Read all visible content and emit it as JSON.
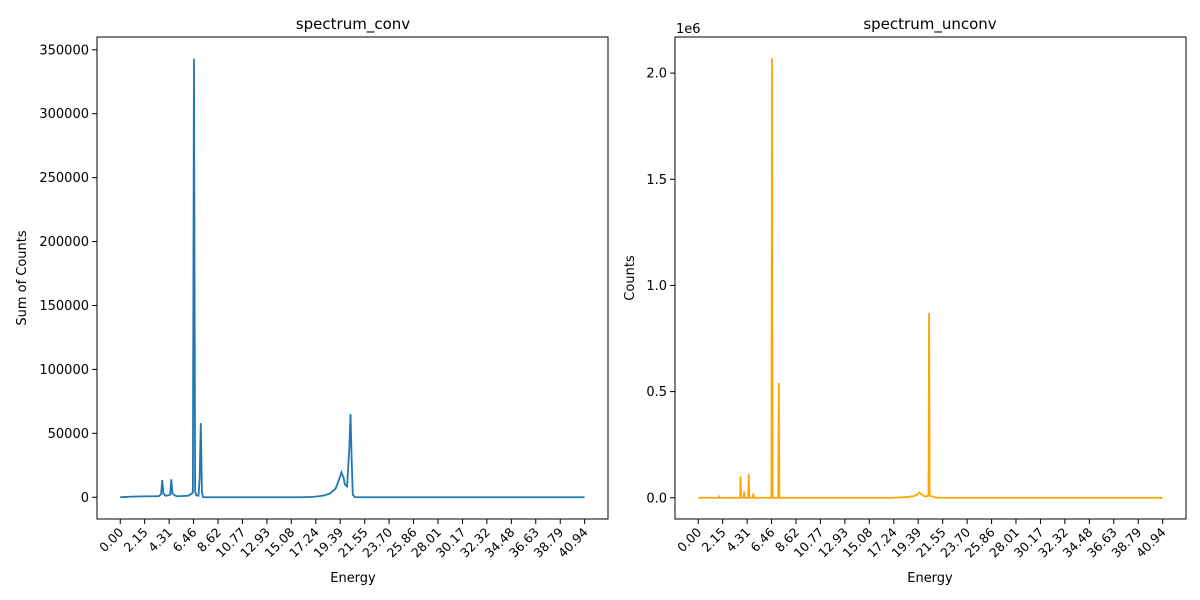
{
  "chart_data": [
    {
      "type": "line",
      "title": "spectrum_conv",
      "xlabel": "Energy",
      "ylabel": "Sum of Counts",
      "scale_label": "",
      "color": "#1f77b4",
      "xlim": [
        -2.05,
        43.0
      ],
      "ylim": [
        -17000,
        360000
      ],
      "xticks": [
        "0.00",
        "2.15",
        "4.31",
        "6.46",
        "8.62",
        "10.77",
        "12.93",
        "15.08",
        "17.24",
        "19.39",
        "21.55",
        "23.70",
        "25.86",
        "28.01",
        "30.17",
        "32.32",
        "34.48",
        "36.63",
        "38.79",
        "40.94"
      ],
      "yticks": [
        {
          "value": 0,
          "label": "0"
        },
        {
          "value": 50000,
          "label": "50000"
        },
        {
          "value": 100000,
          "label": "100000"
        },
        {
          "value": 150000,
          "label": "150000"
        },
        {
          "value": 200000,
          "label": "200000"
        },
        {
          "value": 250000,
          "label": "250000"
        },
        {
          "value": 300000,
          "label": "300000"
        },
        {
          "value": 350000,
          "label": "350000"
        }
      ],
      "grid": false,
      "series": [
        {
          "x": [
            0,
            1.0,
            2.0,
            3.0,
            3.4,
            3.6,
            3.7,
            3.8,
            4.0,
            4.2,
            4.4,
            4.5,
            4.6,
            4.8,
            5.0,
            5.5,
            6.0,
            6.4,
            6.5,
            6.6,
            6.7,
            6.9,
            7.0,
            7.1,
            7.2,
            7.3,
            7.5,
            8.0,
            10.0,
            12.0,
            14.0,
            16.0,
            17.0,
            17.5,
            18.0,
            18.5,
            19.0,
            19.3,
            19.5,
            19.7,
            19.8,
            20.0,
            20.2,
            20.3,
            20.4,
            20.5,
            20.7,
            21.0,
            25.0,
            30.0,
            35.0,
            40.94
          ],
          "y": [
            0,
            500,
            700,
            800,
            900,
            2500,
            13500,
            3000,
            1200,
            1500,
            2000,
            14000,
            3000,
            1500,
            800,
            1000,
            1200,
            3500,
            343000,
            5000,
            1500,
            1200,
            15000,
            58000,
            4000,
            0,
            0,
            0,
            0,
            0,
            0,
            0,
            300,
            800,
            1500,
            3000,
            7000,
            14000,
            19500,
            15000,
            10000,
            8500,
            40000,
            65000,
            30000,
            2000,
            0,
            0,
            0,
            0,
            0,
            0
          ]
        }
      ]
    },
    {
      "type": "line",
      "title": "spectrum_unconv",
      "xlabel": "Energy",
      "ylabel": "Counts",
      "scale_label": "1e6",
      "color": "#ffa500",
      "xlim": [
        -2.05,
        43.0
      ],
      "ylim": [
        -0.1,
        2.17
      ],
      "xticks": [
        "0.00",
        "2.15",
        "4.31",
        "6.46",
        "8.62",
        "10.77",
        "12.93",
        "15.08",
        "17.24",
        "19.39",
        "21.55",
        "23.70",
        "25.86",
        "28.01",
        "30.17",
        "32.32",
        "34.48",
        "36.63",
        "38.79",
        "40.94"
      ],
      "yticks": [
        {
          "value": 0.0,
          "label": "0.0"
        },
        {
          "value": 0.5,
          "label": "0.5"
        },
        {
          "value": 1.0,
          "label": "1.0"
        },
        {
          "value": 1.5,
          "label": "1.5"
        },
        {
          "value": 2.0,
          "label": "2.0"
        }
      ],
      "grid": false,
      "series": [
        {
          "x": [
            0,
            1.8,
            1.85,
            1.9,
            3.7,
            3.72,
            3.78,
            4.0,
            4.05,
            4.1,
            4.4,
            4.45,
            4.5,
            4.8,
            4.85,
            4.9,
            6.45,
            6.5,
            6.55,
            7.05,
            7.1,
            7.15,
            17.0,
            18.0,
            18.5,
            19.0,
            19.3,
            19.5,
            19.8,
            20.0,
            20.3,
            20.35,
            20.4,
            21.0,
            40.94
          ],
          "y": [
            0,
            0,
            0.005,
            0,
            0,
            0.1,
            0,
            0,
            0.03,
            0,
            0,
            0.11,
            0,
            0,
            0.02,
            0,
            0,
            2.07,
            0,
            0,
            0.54,
            0,
            0,
            0.002,
            0.004,
            0.008,
            0.015,
            0.025,
            0.012,
            0.005,
            0.01,
            0.87,
            0.01,
            0,
            0
          ]
        }
      ]
    }
  ]
}
